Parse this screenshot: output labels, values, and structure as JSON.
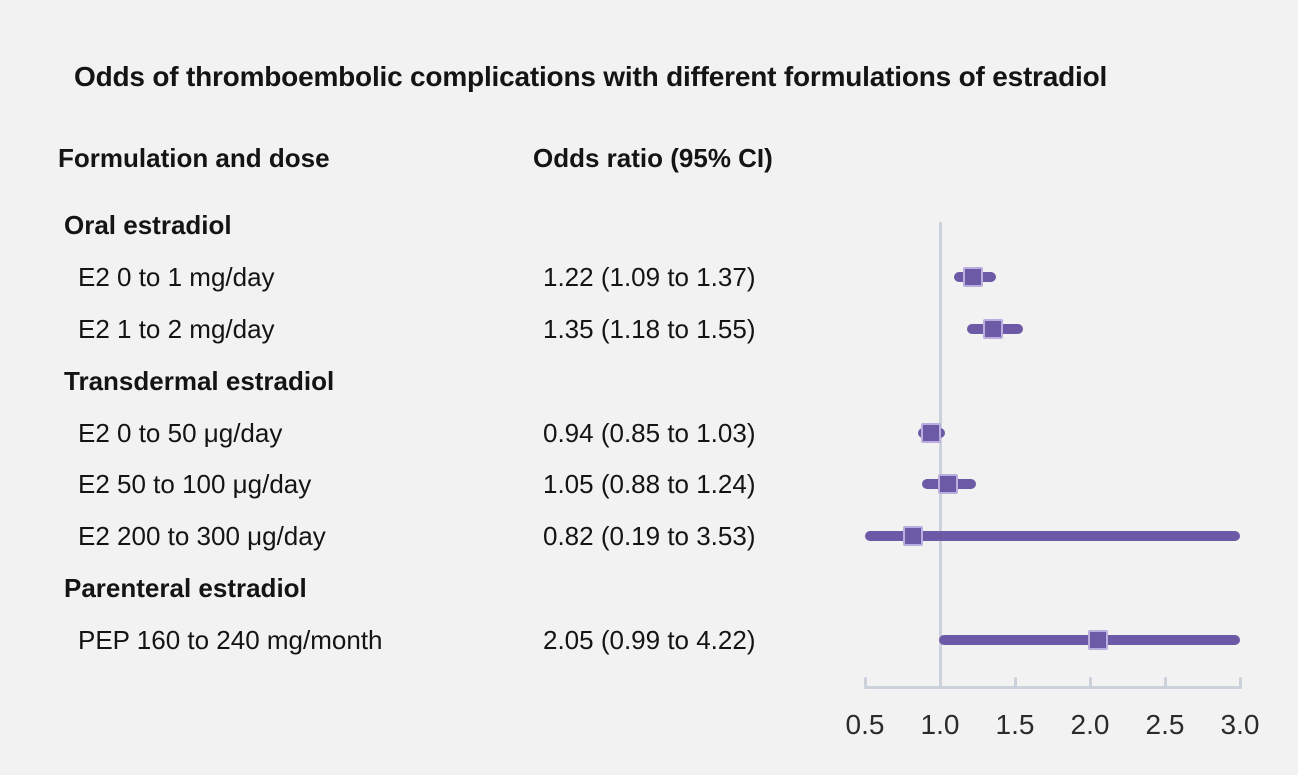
{
  "title": "Odds of thromboembolic complications with different formulations of estradiol",
  "columns": {
    "formulation": "Formulation and dose",
    "odds_ratio": "Odds ratio (95% CI)"
  },
  "axis": {
    "tick_labels": [
      "0.5",
      "1.0",
      "1.5",
      "2.0",
      "2.5",
      "3.0"
    ]
  },
  "colors": {
    "background": "#f2f2f3",
    "text": "#141414",
    "purple": "#6c5aa7",
    "marker_border": "#b9aedd",
    "axis": "#ccd2db"
  },
  "chart_data": {
    "type": "forest",
    "title": "Odds of thromboembolic complications with different formulations of estradiol",
    "xlabel": "",
    "xlim": [
      0.5,
      3.0
    ],
    "xticks": [
      0.5,
      1.0,
      1.5,
      2.0,
      2.5,
      3.0
    ],
    "reference_line": 1.0,
    "grid": false,
    "legend": "none",
    "groups": [
      {
        "label": "Oral estradiol",
        "rows": [
          {
            "label": "E2 0 to 1 mg/day",
            "display": "1.22 (1.09 to 1.37)",
            "or": 1.22,
            "ci_low": 1.09,
            "ci_high": 1.37
          },
          {
            "label": "E2 1 to 2 mg/day",
            "display": "1.35 (1.18 to 1.55)",
            "or": 1.35,
            "ci_low": 1.18,
            "ci_high": 1.55
          }
        ]
      },
      {
        "label": "Transdermal estradiol",
        "rows": [
          {
            "label": "E2 0 to 50 μg/day",
            "display": "0.94 (0.85 to 1.03)",
            "or": 0.94,
            "ci_low": 0.85,
            "ci_high": 1.03
          },
          {
            "label": "E2 50 to 100 μg/day",
            "display": "1.05 (0.88 to 1.24)",
            "or": 1.05,
            "ci_low": 0.88,
            "ci_high": 1.24
          },
          {
            "label": "E2 200 to 300 μg/day",
            "display": "0.82 (0.19 to 3.53)",
            "or": 0.82,
            "ci_low": 0.19,
            "ci_high": 3.53
          }
        ]
      },
      {
        "label": "Parenteral estradiol",
        "rows": [
          {
            "label": "PEP 160 to 240 mg/month",
            "display": "2.05 (0.99 to 4.22)",
            "or": 2.05,
            "ci_low": 0.99,
            "ci_high": 4.22
          }
        ]
      }
    ]
  }
}
